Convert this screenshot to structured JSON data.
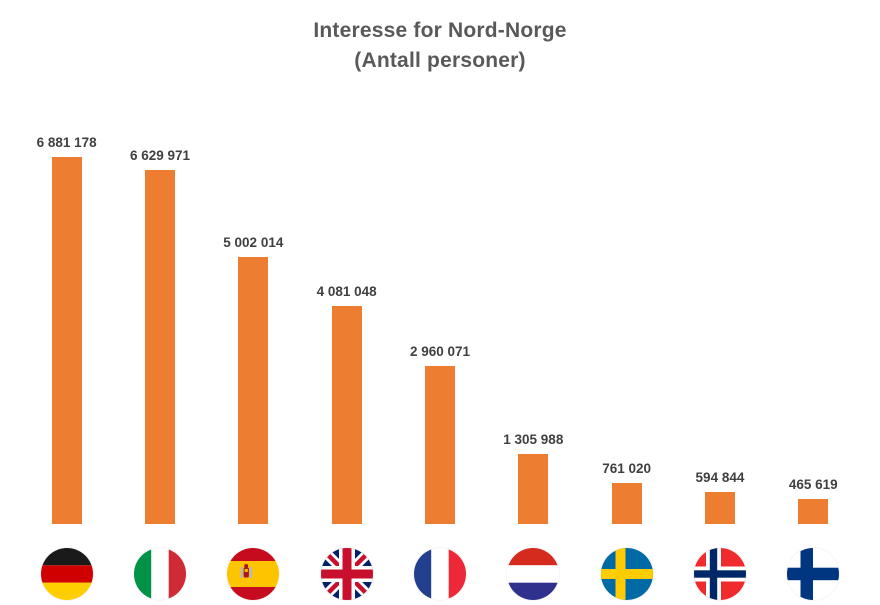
{
  "title": {
    "line1": "Interesse for Nord-Norge",
    "line2": "(Antall personer)"
  },
  "colors": {
    "bar": "#ED7D31",
    "value_label": "#404040",
    "title": "#595959",
    "background": "#FFFFFF"
  },
  "chart_data": {
    "type": "bar",
    "title": "Interesse for Nord-Norge (Antall personer)",
    "xlabel": "",
    "ylabel": "",
    "ylim": [
      0,
      7000000
    ],
    "grid": false,
    "legend": "none",
    "bar_color": "#ED7D31",
    "categories": [
      "Germany",
      "Italy",
      "Spain",
      "United Kingdom",
      "France",
      "Netherlands",
      "Sweden",
      "Norway",
      "Finland"
    ],
    "category_icons": [
      "germany-flag-icon",
      "italy-flag-icon",
      "spain-flag-icon",
      "uk-flag-icon",
      "france-flag-icon",
      "netherlands-flag-icon",
      "sweden-flag-icon",
      "norway-flag-icon",
      "finland-flag-icon"
    ],
    "flag_codes": [
      "de",
      "it",
      "es",
      "gb",
      "fr",
      "nl",
      "se",
      "no",
      "fi"
    ],
    "values": [
      6881178,
      6629971,
      5002014,
      4081048,
      2960071,
      1305988,
      761020,
      594844,
      465619
    ],
    "value_labels": [
      "6 881 178",
      "6 629 971",
      "5 002 014",
      "4 081 048",
      "2 960 071",
      "1 305 988",
      "761 020",
      "594 844",
      "465 619"
    ]
  }
}
